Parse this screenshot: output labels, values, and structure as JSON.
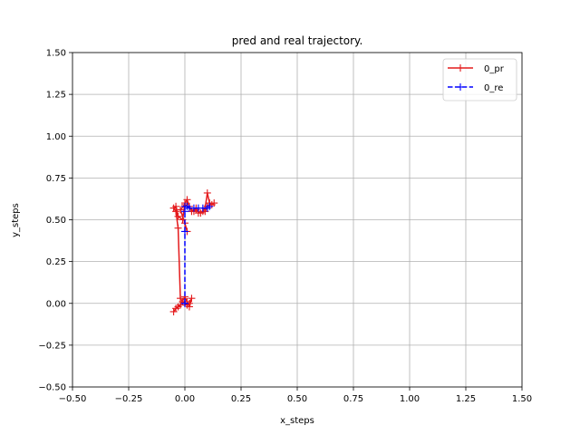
{
  "chart_data": {
    "type": "line",
    "title": "pred and real trajectory.",
    "xlabel": "x_steps",
    "ylabel": "y_steps",
    "xlim": [
      -0.5,
      1.5
    ],
    "ylim": [
      -0.5,
      1.5
    ],
    "xticks": [
      -0.5,
      -0.25,
      0.0,
      0.25,
      0.5,
      0.75,
      1.0,
      1.25,
      1.5
    ],
    "yticks": [
      -0.5,
      -0.25,
      0.0,
      0.25,
      0.5,
      0.75,
      1.0,
      1.25,
      1.5
    ],
    "xtick_labels": [
      "−0.50",
      "−0.25",
      "0.00",
      "0.25",
      "0.50",
      "0.75",
      "1.00",
      "1.25",
      "1.50"
    ],
    "ytick_labels": [
      "−0.50",
      "−0.25",
      "0.00",
      "0.25",
      "0.50",
      "0.75",
      "1.00",
      "1.25",
      "1.50"
    ],
    "grid": true,
    "legend_position": "top-right",
    "series": [
      {
        "name": "0_pr",
        "color": "#e41a1c",
        "line_style": "solid",
        "marker": "plus",
        "x": [
          -0.05,
          -0.04,
          -0.03,
          -0.02,
          0.0,
          0.01,
          0.02,
          0.03,
          0.02,
          0.01,
          -0.01,
          -0.02,
          -0.03,
          -0.04,
          -0.05,
          -0.04,
          -0.03,
          -0.01,
          0.0,
          0.01,
          0.02,
          0.03,
          0.05,
          0.06,
          0.08,
          0.09,
          0.1,
          0.11,
          0.12,
          0.13,
          0.1,
          0.09,
          0.07,
          0.05,
          0.04,
          0.02,
          0.0,
          -0.02,
          0.0,
          0.01
        ],
        "y": [
          -0.05,
          -0.03,
          -0.02,
          -0.01,
          0.04,
          0.01,
          -0.02,
          0.03,
          0.0,
          -0.01,
          0.01,
          0.03,
          0.45,
          0.55,
          0.57,
          0.58,
          0.52,
          0.5,
          0.6,
          0.62,
          0.58,
          0.55,
          0.57,
          0.54,
          0.55,
          0.57,
          0.66,
          0.6,
          0.59,
          0.6,
          0.58,
          0.55,
          0.54,
          0.56,
          0.55,
          0.57,
          0.59,
          0.56,
          0.48,
          0.43
        ]
      },
      {
        "name": "0_re",
        "color": "#0000ff",
        "line_style": "dashed",
        "marker": "plus",
        "x": [
          0.0,
          0.0,
          0.0,
          0.0,
          0.0,
          0.0,
          0.01,
          0.02,
          0.04,
          0.06,
          0.08,
          0.1,
          0.11
        ],
        "y": [
          0.0,
          0.0,
          0.0,
          0.43,
          0.55,
          0.58,
          0.58,
          0.57,
          0.57,
          0.57,
          0.57,
          0.57,
          0.58
        ]
      }
    ]
  }
}
